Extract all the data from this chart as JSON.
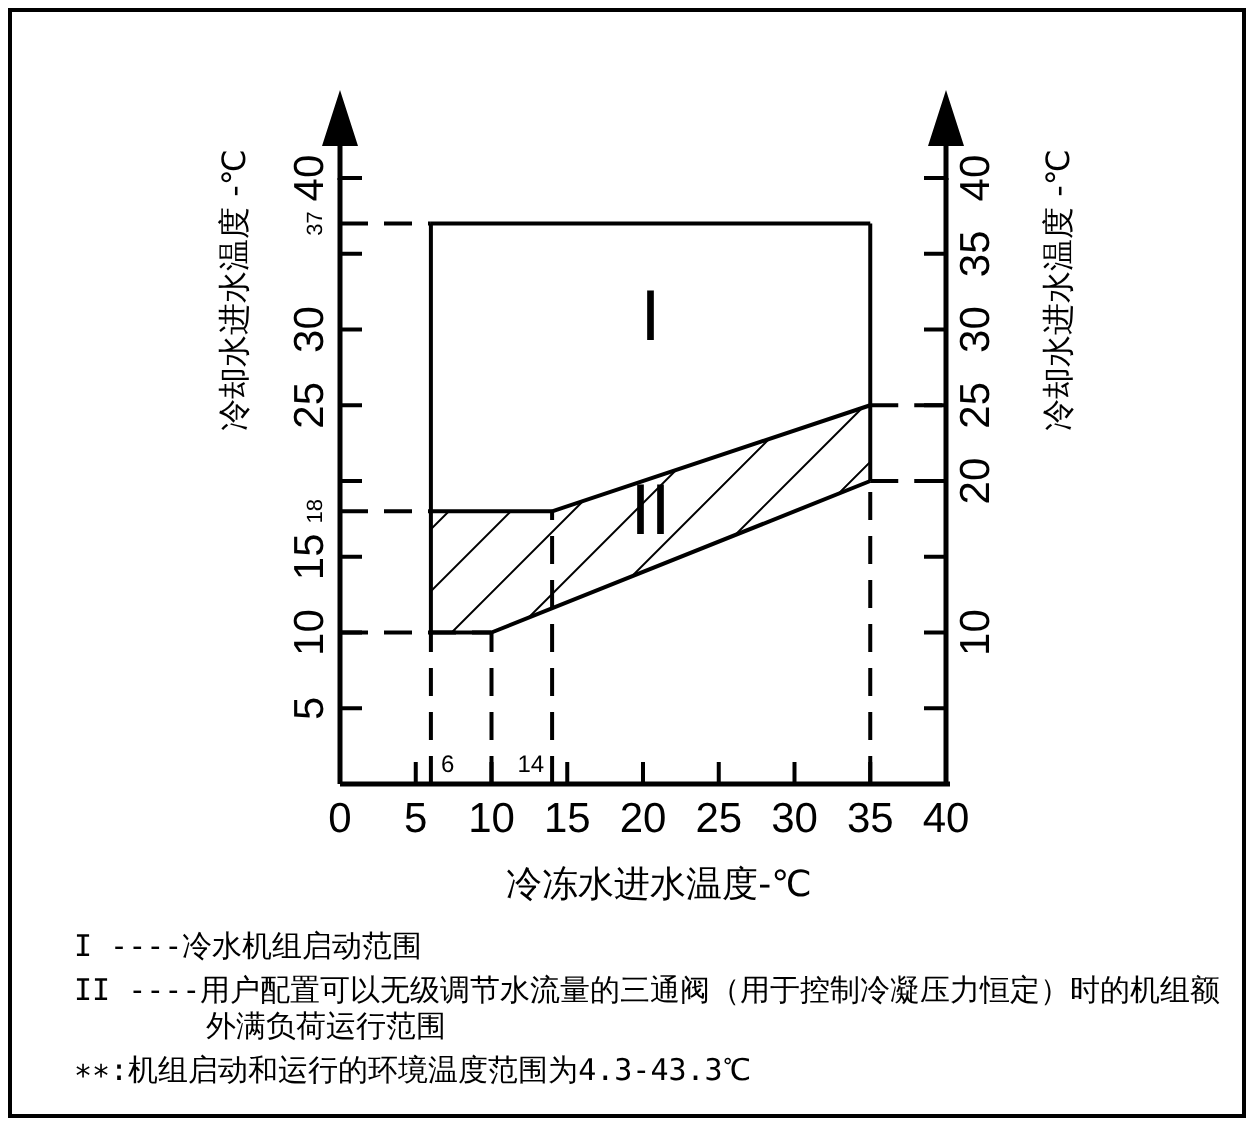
{
  "chart_data": {
    "type": "line",
    "xlabel": "冷冻水进水温度-℃",
    "ylabel": "冷却水进水温度 -℃",
    "y2label": "冷却水进水温度 -℃",
    "xlim": [
      0,
      40
    ],
    "xticks": [
      0,
      5,
      10,
      15,
      20,
      25,
      30,
      35,
      40
    ],
    "ylim": [
      0,
      40
    ],
    "yticks": [
      5,
      10,
      15,
      {
        "value": 20,
        "label": null
      },
      25,
      30,
      {
        "value": 35,
        "label": null
      },
      40
    ],
    "y2lim": [
      0,
      40
    ],
    "y2ticks": [
      {
        "value": 5,
        "label": null
      },
      10,
      {
        "value": 15,
        "label": null
      },
      20,
      25,
      30,
      35,
      40
    ],
    "series": [
      {
        "color": "#000000",
        "line_style": "solid",
        "x": [
          6,
          35
        ],
        "values": [
          37,
          37
        ]
      },
      {
        "color": "#000000",
        "line_style": "solid",
        "x": [
          6,
          6
        ],
        "values": [
          10,
          37
        ]
      },
      {
        "color": "#000000",
        "line_style": "solid",
        "x": [
          35,
          35
        ],
        "values": [
          20,
          37
        ]
      },
      {
        "color": "#000000",
        "line_style": "solid",
        "x": [
          6,
          14,
          35
        ],
        "values": [
          18,
          18,
          25
        ]
      },
      {
        "color": "#000000",
        "line_style": "solid",
        "x": [
          6,
          10,
          35
        ],
        "values": [
          10,
          10,
          20
        ]
      },
      {
        "color": "#000000",
        "line_style": "dashed",
        "x": [
          0,
          6
        ],
        "values": [
          37,
          37
        ]
      },
      {
        "color": "#000000",
        "line_style": "dashed",
        "x": [
          0,
          6
        ],
        "values": [
          18,
          18
        ]
      },
      {
        "color": "#000000",
        "line_style": "dashed",
        "x": [
          0,
          10
        ],
        "values": [
          10,
          10
        ]
      },
      {
        "color": "#000000",
        "line_style": "dashed",
        "x": [
          6,
          6
        ],
        "values": [
          0,
          10
        ]
      },
      {
        "color": "#000000",
        "line_style": "dashed",
        "x": [
          10,
          10
        ],
        "values": [
          0,
          10
        ]
      },
      {
        "color": "#000000",
        "line_style": "dashed",
        "x": [
          14,
          14
        ],
        "values": [
          0,
          18
        ]
      },
      {
        "color": "#000000",
        "line_style": "dashed",
        "x": [
          35,
          35
        ],
        "values": [
          0,
          20
        ]
      },
      {
        "color": "#000000",
        "line_style": "dashed",
        "x": [
          35,
          40
        ],
        "values": [
          25,
          25
        ]
      },
      {
        "color": "#000000",
        "line_style": "dashed",
        "x": [
          35,
          40
        ],
        "values": [
          20,
          20
        ]
      }
    ],
    "annotations": [
      "I",
      "II",
      {
        "text": "6",
        "x": 6,
        "y": 0
      },
      {
        "text": "14",
        "x": 14,
        "y": 0
      },
      {
        "text": "37",
        "x": 0,
        "y": 37
      },
      {
        "text": "18",
        "x": 0,
        "y": 18
      },
      "I ----冷水机组启动范围",
      "II ----用户配置可以无级调节水流量的三通阀（用于控制冷凝压力恒定）时的机组额外满负荷运行范围",
      "∗∗:机组启动和运行的环境温度范围为4.3-43.3℃"
    ]
  }
}
